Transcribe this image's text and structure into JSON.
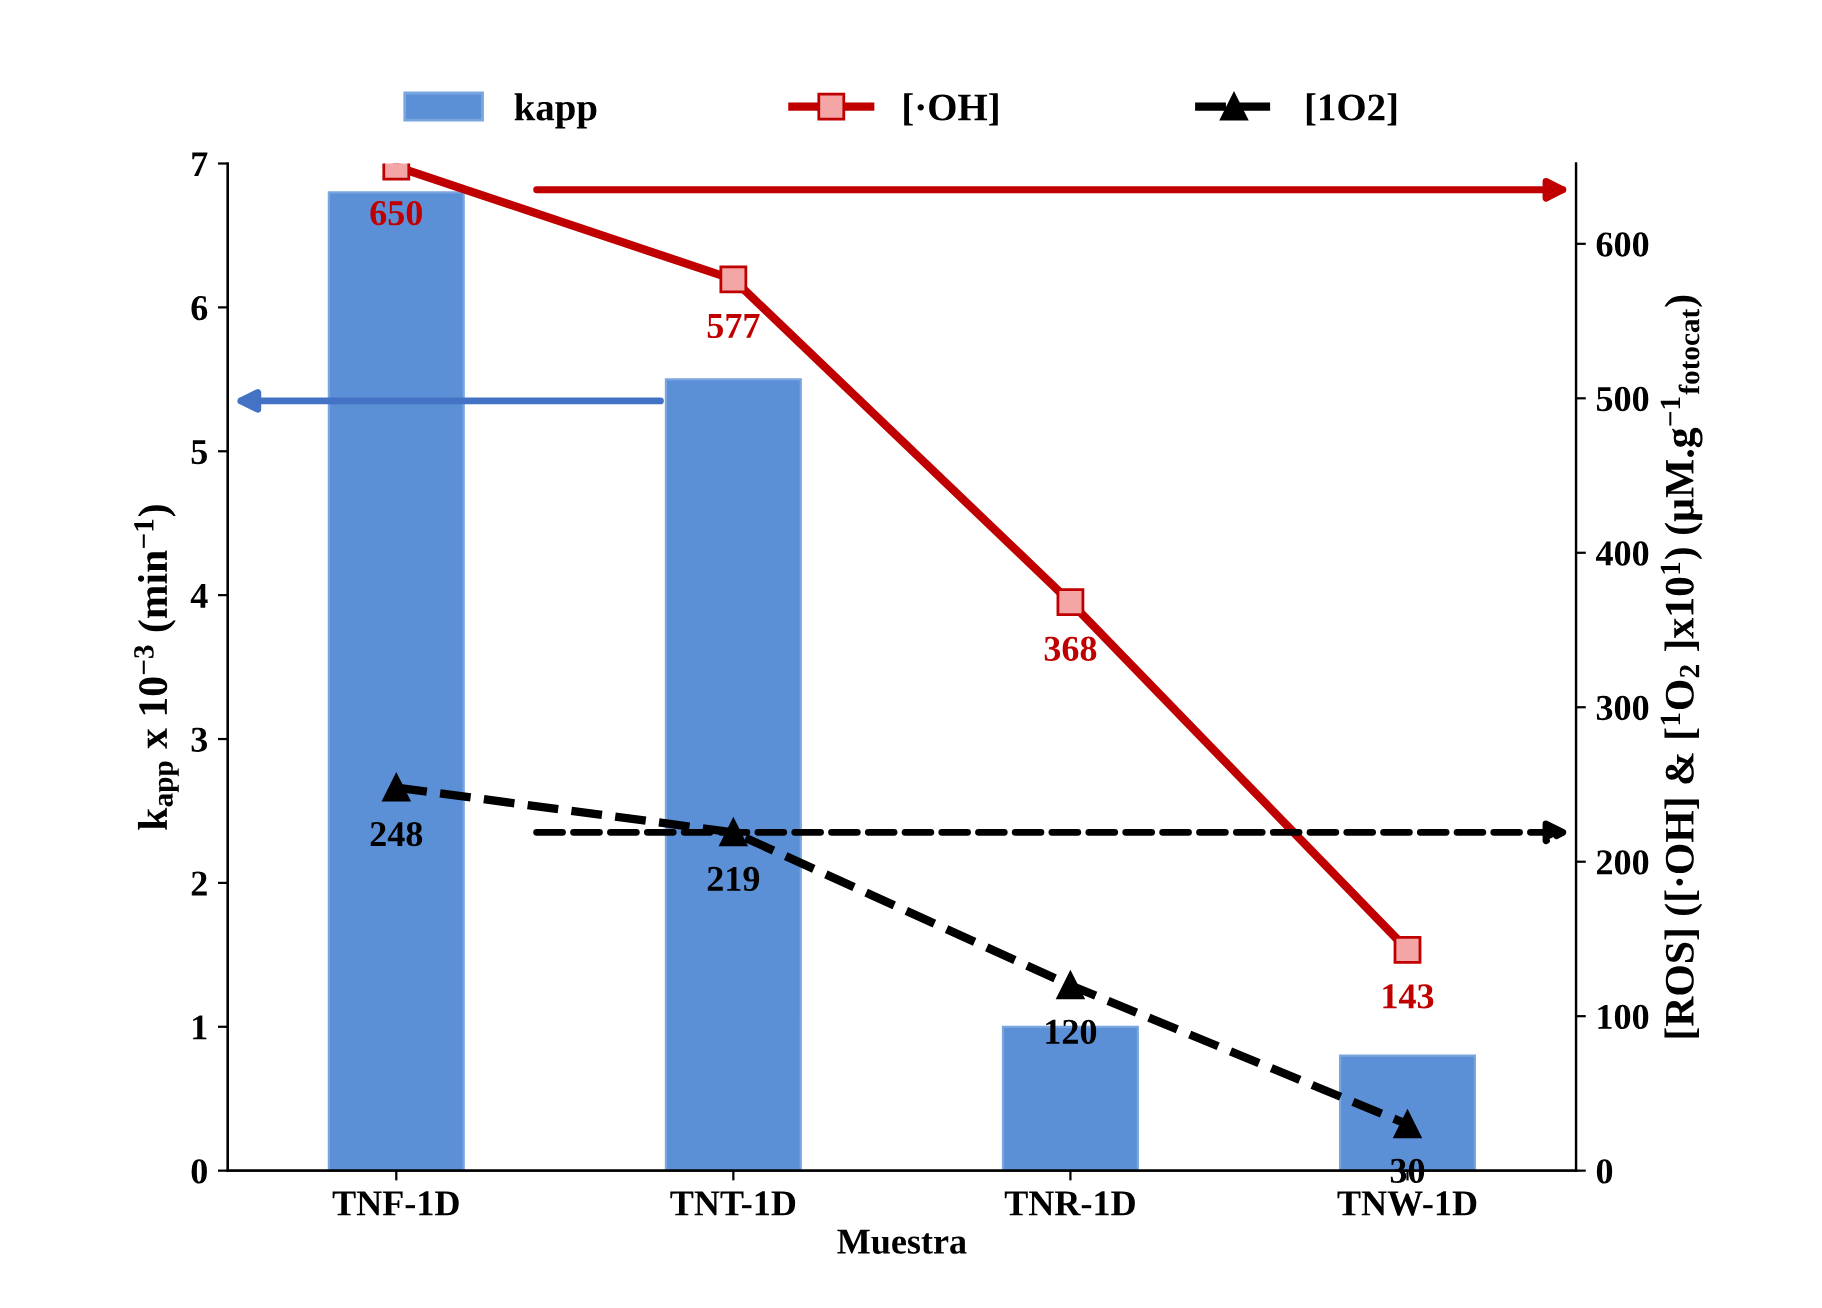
{
  "chart_data": {
    "type": "bar",
    "categories": [
      "TNF-1D",
      "TNT-1D",
      "TNR-1D",
      "TNW-1D"
    ],
    "xlabel": "Muestra",
    "ylabel": "k$_{app}$ x 10$^{−3}$ (min$^{−1}$)",
    "y2label": "[ROS] ([·OH] & [$^{1}$O$_{2}$ ]x10$^{1}$) (µM.g$^{−1}$$_{fotocat}$)",
    "series": [
      {
        "name": "kapp",
        "color": "#5b8fd6",
        "values": [
          6.8,
          5.5,
          1.0,
          0.8
        ]
      },
      {
        "name": "[·OH]",
        "type": "line",
        "axis": "y2",
        "color": "#c00000",
        "marker": "square",
        "line_style": "solid",
        "values": [
          650,
          577,
          368,
          143
        ],
        "value_labels": [
          "650",
          "577",
          "368",
          "143"
        ]
      },
      {
        "name": "[1O2]",
        "type": "line",
        "axis": "y2",
        "color": "#000000",
        "marker": "triangle",
        "line_style": "dashed",
        "values": [
          248,
          219,
          120,
          30
        ],
        "value_labels": [
          "248",
          "219",
          "120",
          "30"
        ]
      }
    ],
    "ylim": [
      0,
      7
    ],
    "yticks": [
      0,
      1,
      2,
      3,
      4,
      5,
      6,
      7
    ],
    "y2lim": [
      0,
      652
    ],
    "y2ticks": [
      0,
      100,
      200,
      300,
      400,
      500,
      600
    ],
    "grid": false,
    "legend": "top"
  }
}
